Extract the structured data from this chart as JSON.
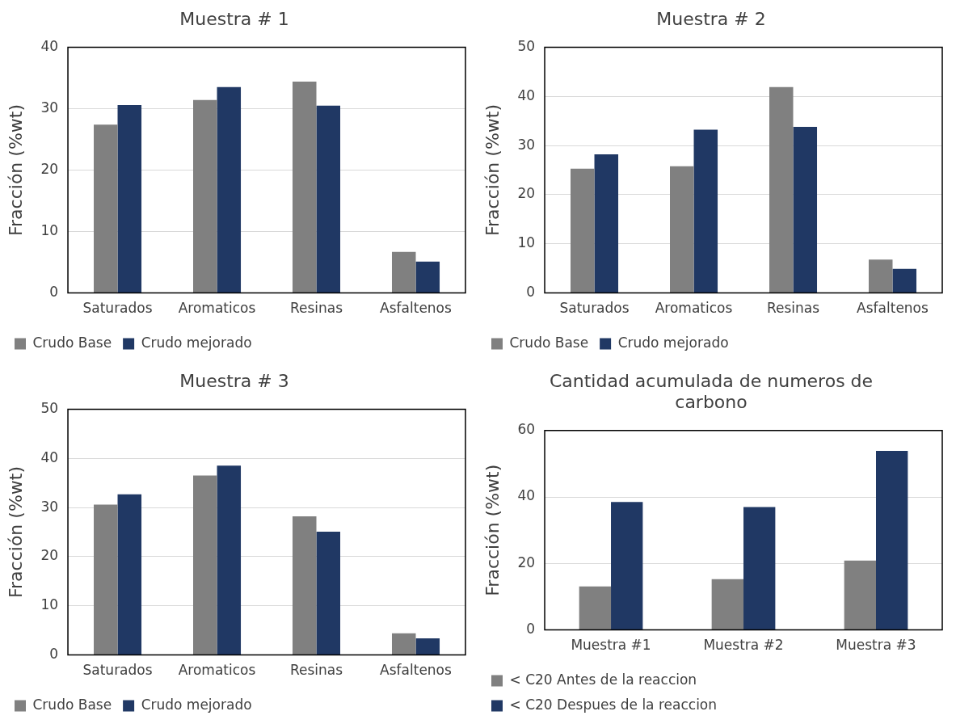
{
  "chart_data": [
    {
      "type": "bar",
      "title": "Muestra # 1",
      "ylabel": "Fracción (%wt)",
      "categories": [
        "Saturados",
        "Aromaticos",
        "Resinas",
        "Asfaltenos"
      ],
      "series": [
        {
          "name": "Crudo Base",
          "color": "#808080",
          "values": [
            27.4,
            31.4,
            34.4,
            6.7
          ]
        },
        {
          "name": "Crudo mejorado",
          "color": "#203864",
          "values": [
            30.6,
            33.5,
            30.5,
            5.1
          ]
        }
      ],
      "ylim": [
        0,
        40
      ],
      "yticks": [
        0,
        10,
        20,
        30,
        40
      ],
      "grid": "y",
      "legend": "bottom"
    },
    {
      "type": "bar",
      "title": "Muestra # 2",
      "ylabel": "Fracción (%wt)",
      "categories": [
        "Saturados",
        "Aromaticos",
        "Resinas",
        "Asfaltenos"
      ],
      "series": [
        {
          "name": "Crudo Base",
          "color": "#808080",
          "values": [
            25.3,
            25.8,
            41.9,
            6.8
          ]
        },
        {
          "name": "Crudo mejorado",
          "color": "#203864",
          "values": [
            28.2,
            33.2,
            33.8,
            4.9
          ]
        }
      ],
      "ylim": [
        0,
        50
      ],
      "yticks": [
        0,
        10,
        20,
        30,
        40,
        50
      ],
      "grid": "y",
      "legend": "bottom"
    },
    {
      "type": "bar",
      "title": "Muestra # 3",
      "ylabel": "Fracción (%wt)",
      "categories": [
        "Saturados",
        "Aromaticos",
        "Resinas",
        "Asfaltenos"
      ],
      "series": [
        {
          "name": "Crudo Base",
          "color": "#808080",
          "values": [
            30.6,
            36.5,
            28.2,
            4.4
          ]
        },
        {
          "name": "Crudo mejorado",
          "color": "#203864",
          "values": [
            32.7,
            38.5,
            25.1,
            3.4
          ]
        }
      ],
      "ylim": [
        0,
        50
      ],
      "yticks": [
        0,
        10,
        20,
        30,
        40,
        50
      ],
      "grid": "y",
      "legend": "bottom"
    },
    {
      "type": "bar",
      "title": "Cantidad acumulada de numeros de carbono",
      "ylabel": "Fracción (%wt)",
      "categories": [
        "Muestra #1",
        "Muestra #2",
        "Muestra #3"
      ],
      "series": [
        {
          "name": "< C20 Antes de la reaccion",
          "color": "#808080",
          "values": [
            13.1,
            15.3,
            20.9
          ]
        },
        {
          "name": "< C20 Despues de la reaccion",
          "color": "#203864",
          "values": [
            38.5,
            37.0,
            53.9
          ]
        }
      ],
      "ylim": [
        0,
        60
      ],
      "yticks": [
        0,
        20,
        40,
        60
      ],
      "grid": "y",
      "legend": "bottom"
    }
  ]
}
